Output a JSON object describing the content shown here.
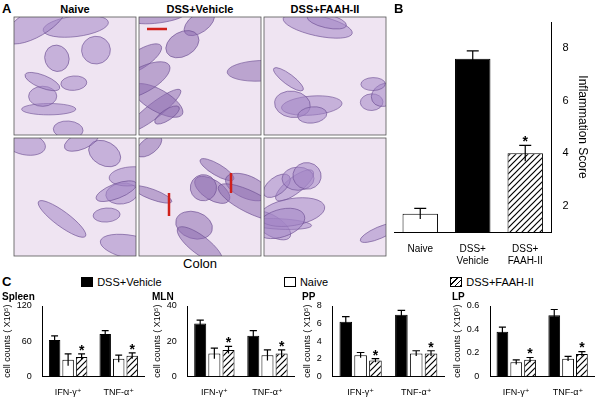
{
  "figure": {
    "panel_a": {
      "label": "A",
      "columns": [
        "Naive",
        "DSS+Vehicle",
        "DSS+FAAH-II"
      ],
      "caption": "Colon"
    },
    "panel_b_label": "B",
    "panel_c_label": "C"
  },
  "chart_data": [
    {
      "type": "bar",
      "y_label": "Inflammation Score",
      "categories": [
        "Naive",
        "DSS+Vehicle",
        "DSS+FAAH-II"
      ],
      "values": [
        1.7,
        7.6,
        4.0
      ],
      "errors": [
        0.2,
        0.3,
        0.3
      ],
      "significance": [
        null,
        null,
        "*"
      ],
      "colors": [
        "#ffffff",
        "#000000",
        "hatch"
      ],
      "ylim": [
        1,
        9
      ],
      "yticks": [
        2,
        4,
        6,
        8
      ],
      "grid": false
    },
    {
      "type": "bar",
      "title": "Spleen",
      "y_label": "cell counts ( X10⁵)",
      "categories": [
        "IFN-γ⁺",
        "TNF-α⁺"
      ],
      "series": [
        {
          "name": "DSS+Vehicle",
          "color": "#000000",
          "values": [
            62,
            72
          ],
          "errors": [
            7,
            6
          ]
        },
        {
          "name": "Naive",
          "color": "#ffffff",
          "values": [
            28,
            30
          ],
          "errors": [
            10,
            6
          ]
        },
        {
          "name": "DSS+FAAH-II",
          "color": "hatch",
          "values": [
            33,
            35
          ],
          "errors": [
            5,
            5
          ],
          "significance": [
            "*",
            "*"
          ]
        }
      ],
      "ylim": [
        0,
        120
      ],
      "yticks": [
        0,
        60,
        120
      ],
      "grid": false
    },
    {
      "type": "bar",
      "title": "MLN",
      "y_label": "cell counts ( X10⁵)",
      "categories": [
        "IFN-γ⁺",
        "TNF-α⁺"
      ],
      "series": [
        {
          "name": "DSS+Vehicle",
          "color": "#000000",
          "values": [
            30,
            23
          ],
          "errors": [
            2,
            3
          ]
        },
        {
          "name": "Naive",
          "color": "#ffffff",
          "values": [
            13,
            12
          ],
          "errors": [
            3,
            3
          ]
        },
        {
          "name": "DSS+FAAH-II",
          "color": "hatch",
          "values": [
            15,
            13
          ],
          "errors": [
            2,
            2
          ],
          "significance": [
            "*",
            "*"
          ]
        }
      ],
      "ylim": [
        0,
        40
      ],
      "yticks": [
        0,
        20,
        40
      ],
      "grid": false
    },
    {
      "type": "bar",
      "title": "PP",
      "y_label": "cell counts ( X10⁵)",
      "categories": [
        "IFN-γ⁺",
        "TNF-α⁺"
      ],
      "series": [
        {
          "name": "DSS+Vehicle",
          "color": "#000000",
          "values": [
            6.2,
            7.0
          ],
          "errors": [
            0.6,
            0.5
          ]
        },
        {
          "name": "Naive",
          "color": "#ffffff",
          "values": [
            2.4,
            2.6
          ],
          "errors": [
            0.3,
            0.3
          ]
        },
        {
          "name": "DSS+FAAH-II",
          "color": "hatch",
          "values": [
            1.8,
            2.6
          ],
          "errors": [
            0.2,
            0.3
          ],
          "significance": [
            "*",
            "*"
          ]
        }
      ],
      "ylim": [
        0,
        8
      ],
      "yticks": [
        0,
        2,
        4,
        6,
        8
      ],
      "grid": false
    },
    {
      "type": "bar",
      "title": "LP",
      "y_label": "cell counts ( X10⁵)",
      "categories": [
        "IFN-γ⁺",
        "TNF-α⁺"
      ],
      "series": [
        {
          "name": "DSS+Vehicle",
          "color": "#000000",
          "values": [
            0.38,
            0.52
          ],
          "errors": [
            0.04,
            0.05
          ]
        },
        {
          "name": "Naive",
          "color": "#ffffff",
          "values": [
            0.12,
            0.15
          ],
          "errors": [
            0.02,
            0.02
          ]
        },
        {
          "name": "DSS+FAAH-II",
          "color": "hatch",
          "values": [
            0.14,
            0.19
          ],
          "errors": [
            0.02,
            0.02
          ],
          "significance": [
            "*",
            "*"
          ]
        }
      ],
      "ylim": [
        0,
        0.6
      ],
      "yticks": [
        0,
        0.2,
        0.4,
        0.6
      ],
      "grid": false
    }
  ]
}
